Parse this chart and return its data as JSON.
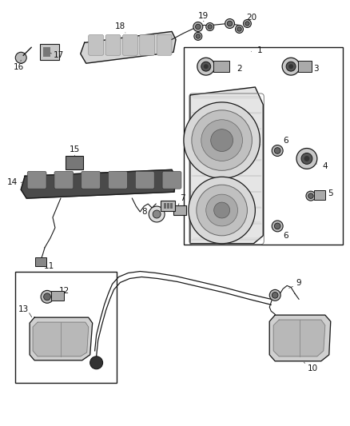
{
  "background_color": "#ffffff",
  "figsize": [
    4.38,
    5.33
  ],
  "dpi": 100,
  "line_color": "#1a1a1a",
  "gray_light": "#d0d0d0",
  "gray_med": "#999999",
  "gray_dark": "#555555"
}
